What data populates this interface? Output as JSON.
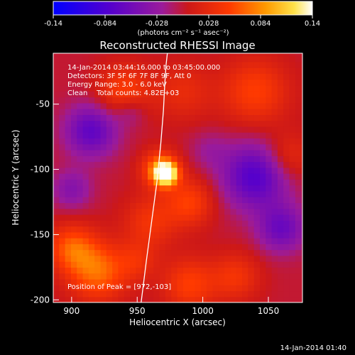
{
  "chart_data": {
    "type": "heatmap",
    "title": "Reconstructed RHESSI Image",
    "xlabel": "Heliocentric X (arcsec)",
    "ylabel": "Heliocentric Y (arcsec)",
    "xlim": [
      886,
      1076
    ],
    "ylim": [
      -202,
      -11
    ],
    "x_ticks": [
      900,
      950,
      1000,
      1050
    ],
    "y_ticks": [
      -50,
      -100,
      -150,
      -200
    ],
    "colorbar": {
      "label": "(photons cm⁻² s⁻¹ asec⁻²)",
      "range": [
        -0.14,
        0.14
      ],
      "ticks": [
        "-0.14",
        "-0.084",
        "-0.028",
        "0.028",
        "0.084",
        "0.14"
      ]
    },
    "annotations": [
      "14-Jan-2014 03:44:16.000 to 03:45:00.000",
      "Detectors: 3F 5F 6F 7F 8F 9F, Att 0",
      "Energy Range: 3.0 - 6.0 keV",
      "Clean    Total counts: 4.82E+03"
    ],
    "peak_label": "Position of Peak = [972,-103]",
    "peak": {
      "x": 972,
      "y": -103,
      "value": 0.14
    },
    "limb_curve": {
      "x": [
        953,
        957,
        961,
        965,
        968,
        970,
        971,
        972,
        973
      ],
      "y": [
        -202,
        -170,
        -140,
        -110,
        -80,
        -55,
        -35,
        -20,
        -11
      ]
    },
    "blobs": [
      {
        "x": 972,
        "y": -103,
        "r": 8,
        "v": 0.14
      },
      {
        "x": 968,
        "y": -100,
        "r": 14,
        "v": 0.08
      },
      {
        "x": 940,
        "y": -40,
        "r": 20,
        "v": 0.05
      },
      {
        "x": 985,
        "y": -40,
        "r": 22,
        "v": 0.03
      },
      {
        "x": 1040,
        "y": -40,
        "r": 25,
        "v": 0.05
      },
      {
        "x": 1065,
        "y": -90,
        "r": 18,
        "v": 0.035
      },
      {
        "x": 990,
        "y": -125,
        "r": 18,
        "v": 0.05
      },
      {
        "x": 960,
        "y": -140,
        "r": 20,
        "v": 0.04
      },
      {
        "x": 900,
        "y": -160,
        "r": 18,
        "v": 0.06
      },
      {
        "x": 920,
        "y": -178,
        "r": 22,
        "v": 0.07
      },
      {
        "x": 950,
        "y": -170,
        "r": 15,
        "v": 0.03
      },
      {
        "x": 990,
        "y": -188,
        "r": 20,
        "v": 0.05
      },
      {
        "x": 1025,
        "y": -182,
        "r": 18,
        "v": 0.04
      },
      {
        "x": 915,
        "y": -70,
        "r": 20,
        "v": -0.07
      },
      {
        "x": 900,
        "y": -115,
        "r": 15,
        "v": -0.04
      },
      {
        "x": 1040,
        "y": -105,
        "r": 25,
        "v": -0.08
      },
      {
        "x": 1060,
        "y": -145,
        "r": 18,
        "v": -0.06
      },
      {
        "x": 1005,
        "y": -85,
        "r": 15,
        "v": -0.02
      },
      {
        "x": 945,
        "y": -55,
        "r": 12,
        "v": -0.03
      }
    ]
  },
  "footer": {
    "timestamp": "14-Jan-2014 01:40"
  }
}
